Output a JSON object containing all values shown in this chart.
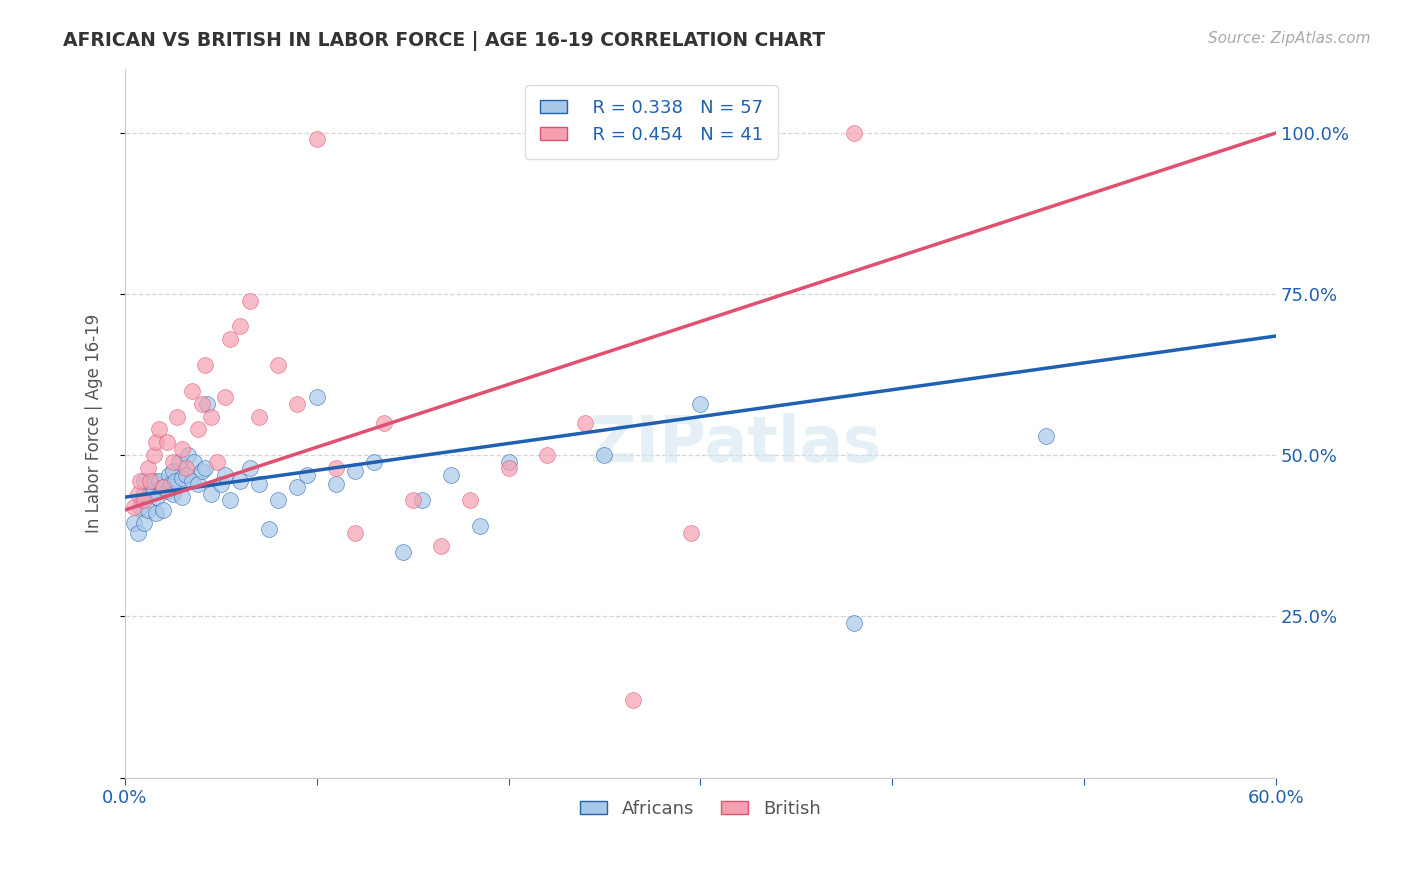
{
  "title": "AFRICAN VS BRITISH IN LABOR FORCE | AGE 16-19 CORRELATION CHART",
  "source": "Source: ZipAtlas.com",
  "ylabel": "In Labor Force | Age 16-19",
  "x_min": 0.0,
  "x_max": 0.6,
  "y_min": 0.0,
  "y_max": 1.1,
  "africans_color": "#a8c8e8",
  "british_color": "#f4a0b0",
  "africans_line_color": "#2060b0",
  "british_line_color": "#e05070",
  "r_african": 0.338,
  "n_african": 57,
  "r_british": 0.454,
  "n_british": 41,
  "watermark": "ZIPatlas",
  "background_color": "#ffffff",
  "grid_color": "#cccccc",
  "africans_x": [
    0.005,
    0.007,
    0.008,
    0.009,
    0.01,
    0.01,
    0.01,
    0.012,
    0.013,
    0.015,
    0.015,
    0.016,
    0.017,
    0.018,
    0.02,
    0.02,
    0.022,
    0.023,
    0.024,
    0.025,
    0.025,
    0.026,
    0.028,
    0.03,
    0.03,
    0.032,
    0.033,
    0.035,
    0.036,
    0.038,
    0.04,
    0.042,
    0.043,
    0.045,
    0.05,
    0.052,
    0.055,
    0.06,
    0.065,
    0.07,
    0.075,
    0.08,
    0.09,
    0.095,
    0.1,
    0.11,
    0.12,
    0.13,
    0.145,
    0.155,
    0.17,
    0.185,
    0.2,
    0.25,
    0.3,
    0.38,
    0.48
  ],
  "africans_y": [
    0.395,
    0.38,
    0.42,
    0.43,
    0.44,
    0.46,
    0.395,
    0.415,
    0.44,
    0.445,
    0.46,
    0.41,
    0.435,
    0.46,
    0.415,
    0.45,
    0.445,
    0.47,
    0.455,
    0.44,
    0.475,
    0.46,
    0.49,
    0.435,
    0.465,
    0.47,
    0.5,
    0.46,
    0.49,
    0.455,
    0.475,
    0.48,
    0.58,
    0.44,
    0.455,
    0.47,
    0.43,
    0.46,
    0.48,
    0.455,
    0.385,
    0.43,
    0.45,
    0.47,
    0.59,
    0.455,
    0.475,
    0.49,
    0.35,
    0.43,
    0.47,
    0.39,
    0.49,
    0.5,
    0.58,
    0.24,
    0.53
  ],
  "british_x": [
    0.005,
    0.007,
    0.008,
    0.01,
    0.012,
    0.013,
    0.015,
    0.016,
    0.018,
    0.02,
    0.022,
    0.025,
    0.027,
    0.03,
    0.032,
    0.035,
    0.038,
    0.04,
    0.042,
    0.045,
    0.048,
    0.052,
    0.055,
    0.06,
    0.065,
    0.07,
    0.08,
    0.09,
    0.1,
    0.11,
    0.12,
    0.135,
    0.15,
    0.165,
    0.18,
    0.2,
    0.22,
    0.24,
    0.265,
    0.295,
    0.38
  ],
  "british_y": [
    0.42,
    0.44,
    0.46,
    0.43,
    0.48,
    0.46,
    0.5,
    0.52,
    0.54,
    0.45,
    0.52,
    0.49,
    0.56,
    0.51,
    0.48,
    0.6,
    0.54,
    0.58,
    0.64,
    0.56,
    0.49,
    0.59,
    0.68,
    0.7,
    0.74,
    0.56,
    0.64,
    0.58,
    0.99,
    0.48,
    0.38,
    0.55,
    0.43,
    0.36,
    0.43,
    0.48,
    0.5,
    0.55,
    0.12,
    0.38,
    1.0
  ],
  "african_line_x0": 0.0,
  "african_line_y0": 0.435,
  "african_line_x1": 0.6,
  "african_line_y1": 0.685,
  "british_line_x0": 0.0,
  "british_line_y0": 0.415,
  "british_line_x1": 0.6,
  "british_line_y1": 1.0
}
